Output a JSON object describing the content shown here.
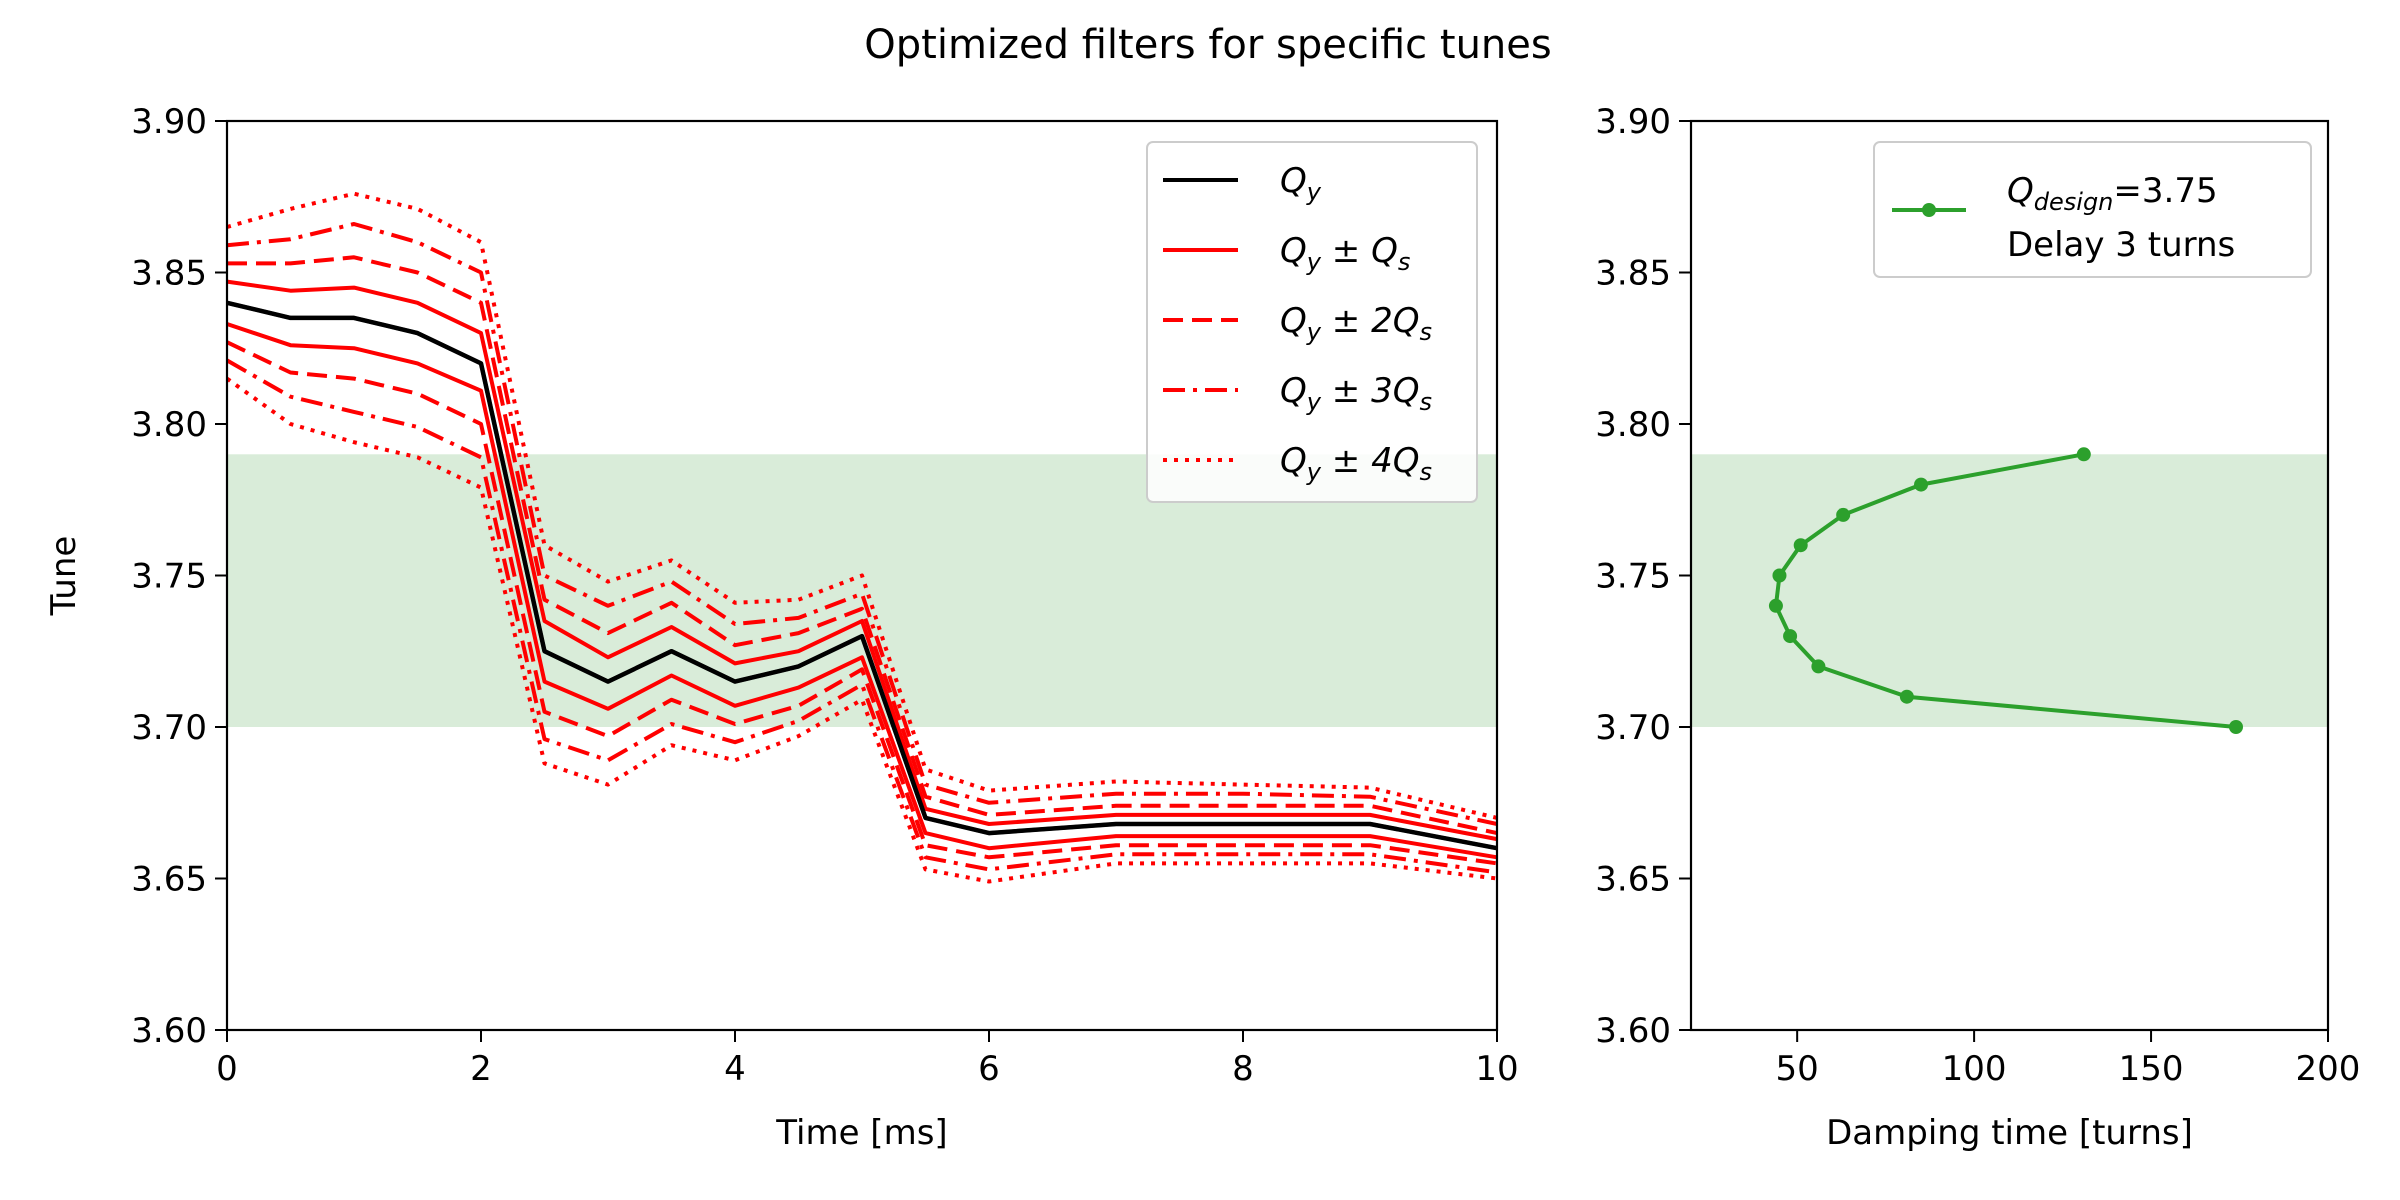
{
  "figure_title": "Optimized filters for specific tunes",
  "chart_data": [
    {
      "type": "line",
      "panel": "left",
      "xlabel": "Time [ms]",
      "ylabel": "Tune",
      "xlim": [
        0,
        10
      ],
      "ylim": [
        3.6,
        3.9
      ],
      "xticks": [
        0,
        2,
        4,
        6,
        8,
        10
      ],
      "xtick_labels": [
        "0",
        "2",
        "4",
        "6",
        "8",
        "10"
      ],
      "yticks": [
        3.6,
        3.65,
        3.7,
        3.75,
        3.8,
        3.85,
        3.9
      ],
      "ytick_labels": [
        "3.60",
        "3.65",
        "3.70",
        "3.75",
        "3.80",
        "3.85",
        "3.90"
      ],
      "shaded_band": {
        "y": [
          3.7,
          3.79
        ],
        "color": "#d9ecd9"
      },
      "grid": false,
      "legend_placement": "top-right",
      "legend": [
        {
          "main": "Q",
          "sub": "y",
          "suffix": "",
          "style": "solid",
          "color": "#000000"
        },
        {
          "main": "Q",
          "sub": "y",
          "suffix": " ± Q",
          "sub2": "s",
          "style": "solid",
          "color": "#ff0000"
        },
        {
          "main": "Q",
          "sub": "y",
          "suffix": " ± 2Q",
          "sub2": "s",
          "style": "dashed",
          "color": "#ff0000"
        },
        {
          "main": "Q",
          "sub": "y",
          "suffix": " ± 3Q",
          "sub2": "s",
          "style": "dashdot",
          "color": "#ff0000"
        },
        {
          "main": "Q",
          "sub": "y",
          "suffix": " ± 4Q",
          "sub2": "s",
          "style": "dotted",
          "color": "#ff0000"
        }
      ],
      "x": [
        0,
        0.5,
        1,
        1.5,
        2,
        2.5,
        3,
        3.5,
        4,
        4.5,
        5,
        5.5,
        6,
        7,
        8,
        9,
        10
      ],
      "series": [
        {
          "name": "Qy",
          "color": "#000000",
          "style": "solid",
          "values": [
            3.84,
            3.835,
            3.835,
            3.83,
            3.82,
            3.725,
            3.715,
            3.725,
            3.715,
            3.72,
            3.73,
            3.67,
            3.665,
            3.668,
            3.668,
            3.668,
            3.66
          ]
        },
        {
          "name": "Qy + Qs",
          "color": "#ff0000",
          "style": "solid",
          "values": [
            3.847,
            3.844,
            3.845,
            3.84,
            3.83,
            3.735,
            3.723,
            3.733,
            3.721,
            3.725,
            3.735,
            3.673,
            3.668,
            3.671,
            3.671,
            3.671,
            3.663
          ]
        },
        {
          "name": "Qy - Qs",
          "color": "#ff0000",
          "style": "solid",
          "values": [
            3.833,
            3.826,
            3.825,
            3.82,
            3.811,
            3.715,
            3.706,
            3.717,
            3.707,
            3.713,
            3.723,
            3.665,
            3.66,
            3.664,
            3.664,
            3.664,
            3.657
          ]
        },
        {
          "name": "Qy + 2Qs",
          "color": "#ff0000",
          "style": "dashed",
          "values": [
            3.853,
            3.853,
            3.855,
            3.85,
            3.84,
            3.742,
            3.731,
            3.741,
            3.727,
            3.731,
            3.739,
            3.677,
            3.671,
            3.674,
            3.674,
            3.674,
            3.665
          ]
        },
        {
          "name": "Qy - 2Qs",
          "color": "#ff0000",
          "style": "dashed",
          "values": [
            3.827,
            3.817,
            3.815,
            3.81,
            3.8,
            3.705,
            3.697,
            3.709,
            3.701,
            3.707,
            3.719,
            3.661,
            3.657,
            3.661,
            3.661,
            3.661,
            3.655
          ]
        },
        {
          "name": "Qy + 3Qs",
          "color": "#ff0000",
          "style": "dashdot",
          "values": [
            3.859,
            3.861,
            3.866,
            3.86,
            3.85,
            3.75,
            3.74,
            3.748,
            3.734,
            3.736,
            3.744,
            3.681,
            3.675,
            3.678,
            3.678,
            3.677,
            3.668
          ]
        },
        {
          "name": "Qy - 3Qs",
          "color": "#ff0000",
          "style": "dashdot",
          "values": [
            3.821,
            3.809,
            3.804,
            3.799,
            3.789,
            3.696,
            3.689,
            3.701,
            3.695,
            3.702,
            3.714,
            3.657,
            3.653,
            3.658,
            3.658,
            3.658,
            3.652
          ]
        },
        {
          "name": "Qy + 4Qs",
          "color": "#ff0000",
          "style": "dotted",
          "values": [
            3.865,
            3.871,
            3.876,
            3.871,
            3.86,
            3.76,
            3.748,
            3.755,
            3.741,
            3.742,
            3.75,
            3.686,
            3.679,
            3.682,
            3.681,
            3.68,
            3.67
          ]
        },
        {
          "name": "Qy - 4Qs",
          "color": "#ff0000",
          "style": "dotted",
          "values": [
            3.815,
            3.8,
            3.794,
            3.789,
            3.779,
            3.688,
            3.681,
            3.694,
            3.689,
            3.697,
            3.709,
            3.653,
            3.649,
            3.655,
            3.655,
            3.655,
            3.65
          ]
        }
      ]
    },
    {
      "type": "line",
      "panel": "right",
      "xlabel": "Damping time [turns]",
      "ylabel": "",
      "xlim": [
        20,
        200
      ],
      "ylim": [
        3.6,
        3.9
      ],
      "xticks": [
        50,
        100,
        150,
        200
      ],
      "xtick_labels": [
        "50",
        "100",
        "150",
        "200"
      ],
      "yticks": [
        3.6,
        3.65,
        3.7,
        3.75,
        3.8,
        3.85,
        3.9
      ],
      "ytick_labels": [
        "3.60",
        "3.65",
        "3.70",
        "3.75",
        "3.80",
        "3.85",
        "3.90"
      ],
      "shaded_band": {
        "y": [
          3.7,
          3.79
        ],
        "color": "#d9ecd9"
      },
      "grid": false,
      "legend_placement": "top-right",
      "legend": [
        {
          "main": "Q",
          "sub": "design",
          "suffix": "=3.75",
          "line2": "Delay 3 turns",
          "style": "solid-marker",
          "color": "#2ca02c"
        }
      ],
      "series": [
        {
          "color": "#2ca02c",
          "marker": "circle",
          "x": [
            174,
            81,
            56,
            48,
            44,
            45,
            51,
            63,
            85,
            131
          ],
          "y": [
            3.7,
            3.71,
            3.72,
            3.73,
            3.74,
            3.75,
            3.76,
            3.77,
            3.78,
            3.79
          ]
        }
      ]
    }
  ]
}
